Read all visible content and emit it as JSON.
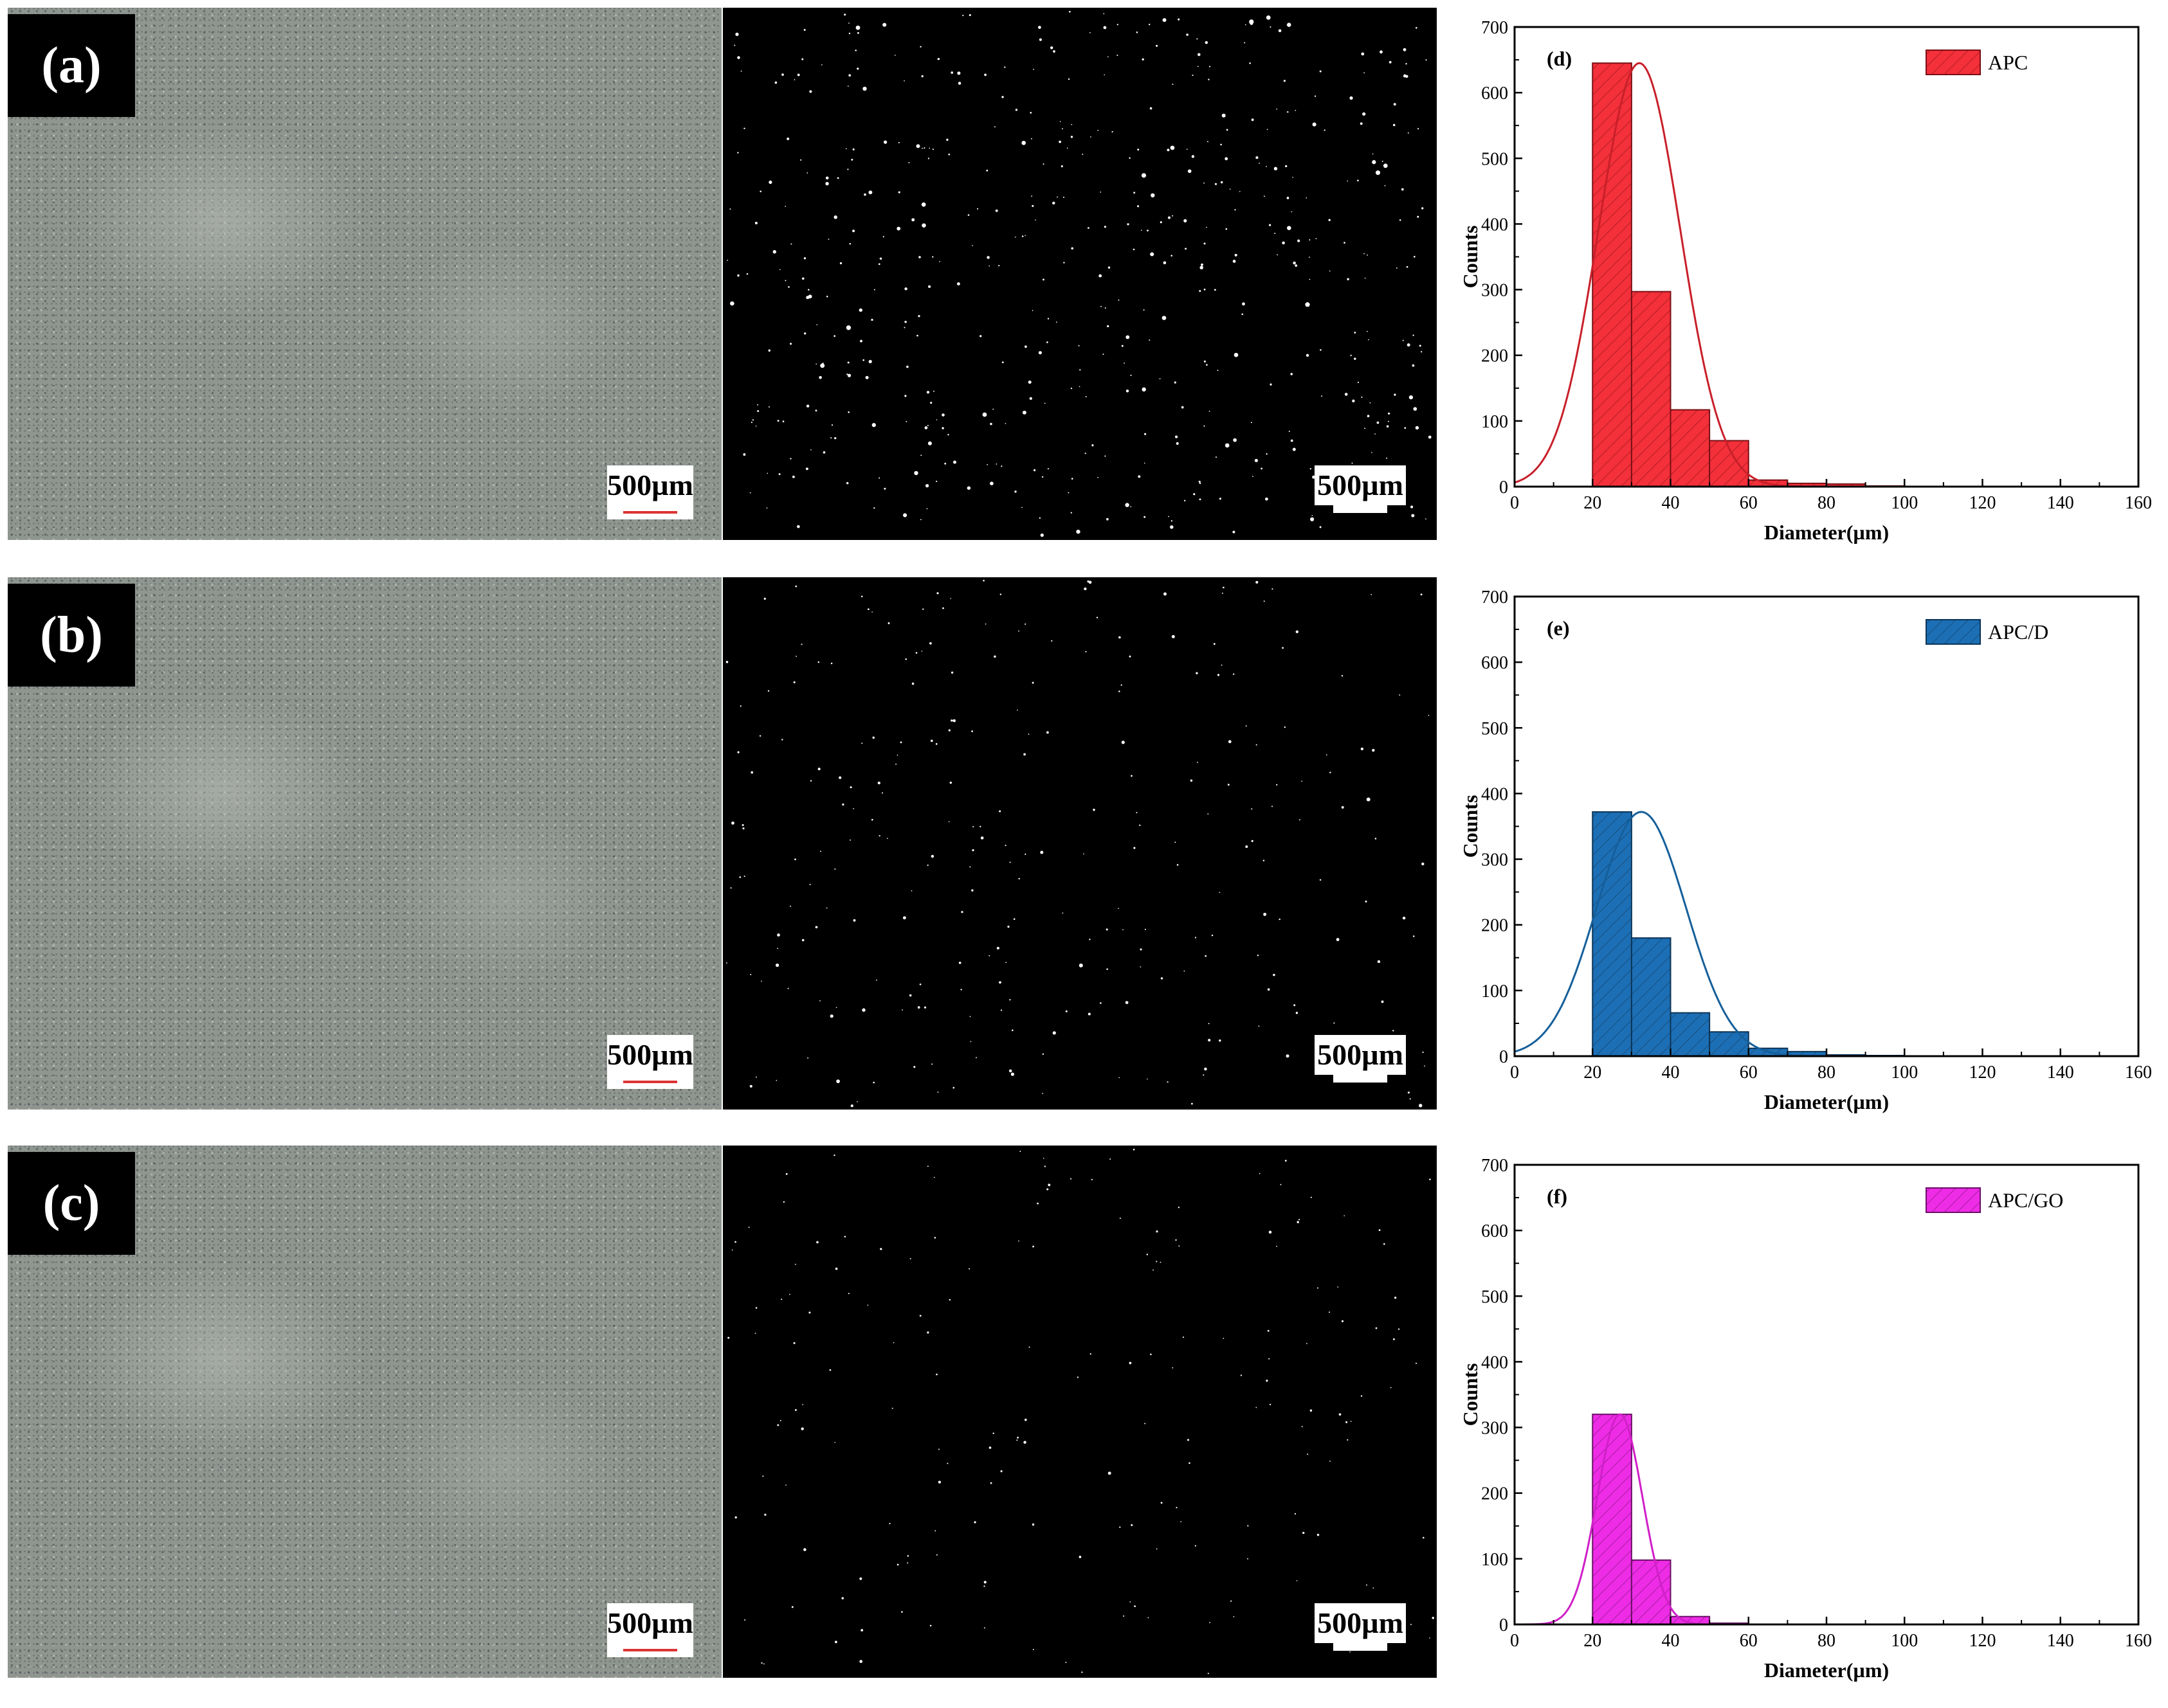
{
  "panels": [
    {
      "label": "(a)",
      "scale_left": "500µm",
      "scale_right": "500µm"
    },
    {
      "label": "(b)",
      "scale_left": "500µm",
      "scale_right": "500µm"
    },
    {
      "label": "(c)",
      "scale_left": "500µm",
      "scale_right": "500µm"
    }
  ],
  "chart_data": [
    {
      "type": "bar",
      "panel_tag": "(d)",
      "legend": "APC",
      "color": "#f4303a",
      "edge_color": "#7a1016",
      "curve_color": "#c8202a",
      "xlabel": "Diameter(µm)",
      "ylabel": "Counts",
      "xlim": [
        0,
        160
      ],
      "ylim": [
        0,
        700
      ],
      "xticks": [
        0,
        20,
        40,
        60,
        80,
        100,
        120,
        140,
        160
      ],
      "yticks": [
        0,
        100,
        200,
        300,
        400,
        500,
        600,
        700
      ],
      "bin_edges": [
        20,
        30,
        40,
        50,
        60,
        70,
        80,
        90,
        100
      ],
      "values": [
        645,
        297,
        117,
        70,
        10,
        5,
        4,
        1
      ],
      "fit": {
        "mean": 32,
        "sd": 10.5,
        "peak": 645
      }
    },
    {
      "type": "bar",
      "panel_tag": "(e)",
      "legend": "APC/D",
      "color": "#1d6fb5",
      "edge_color": "#0c3456",
      "curve_color": "#155f9a",
      "xlabel": "Diameter(µm)",
      "ylabel": "Counts",
      "xlim": [
        0,
        160
      ],
      "ylim": [
        0,
        700
      ],
      "xticks": [
        0,
        20,
        40,
        60,
        80,
        100,
        120,
        140,
        160
      ],
      "yticks": [
        0,
        100,
        200,
        300,
        400,
        500,
        600,
        700
      ],
      "bin_edges": [
        20,
        30,
        40,
        50,
        60,
        70,
        80,
        90,
        100
      ],
      "values": [
        372,
        180,
        66,
        37,
        12,
        7,
        2,
        1
      ],
      "fit": {
        "mean": 32.5,
        "sd": 11.5,
        "peak": 372
      }
    },
    {
      "type": "bar",
      "panel_tag": "(f)",
      "legend": "APC/GO",
      "color": "#ee2ce6",
      "edge_color": "#6a1066",
      "curve_color": "#d020c8",
      "xlabel": "Diameter(µm)",
      "ylabel": "Counts",
      "xlim": [
        0,
        160
      ],
      "ylim": [
        0,
        700
      ],
      "xticks": [
        0,
        20,
        40,
        60,
        80,
        100,
        120,
        140,
        160
      ],
      "yticks": [
        0,
        100,
        200,
        300,
        400,
        500,
        600,
        700
      ],
      "bin_edges": [
        20,
        30,
        40,
        50,
        60
      ],
      "values": [
        320,
        98,
        12,
        2
      ],
      "fit": {
        "mean": 27,
        "sd": 5.8,
        "peak": 320
      }
    }
  ]
}
